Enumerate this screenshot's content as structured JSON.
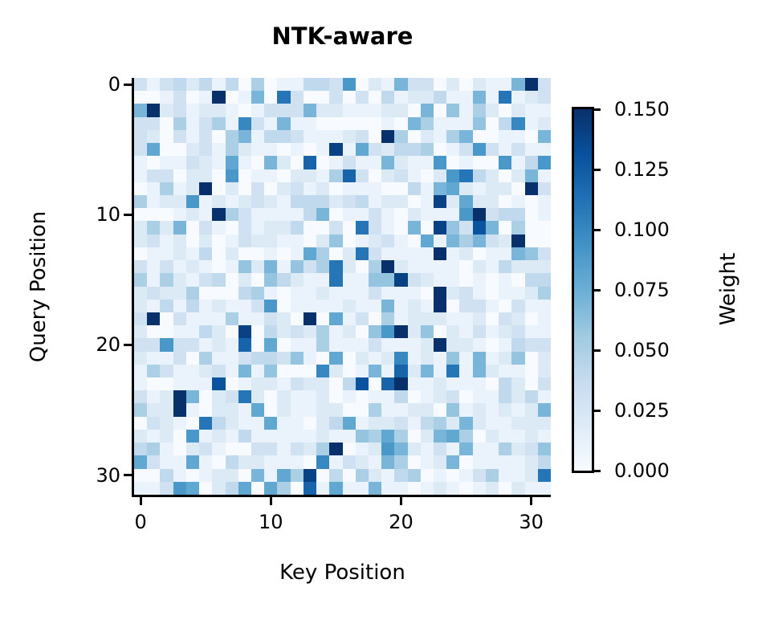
{
  "chart_data": {
    "type": "heatmap",
    "title": "NTK-aware",
    "xlabel": "Key Position",
    "ylabel": "Query Position",
    "x_ticks": [
      0,
      10,
      20,
      30
    ],
    "y_ticks": [
      0,
      10,
      20,
      30
    ],
    "x_range": [
      0,
      31
    ],
    "y_range": [
      0,
      31
    ],
    "colormap": "Blues",
    "colorbar": {
      "label": "Weight",
      "min": 0.0,
      "max": 0.15,
      "ticks": [
        "0.000",
        "0.025",
        "0.050",
        "0.075",
        "0.100",
        "0.125",
        "0.150"
      ]
    },
    "grid": false,
    "legend": null,
    "values": [
      [
        0.03,
        0.01,
        0.03,
        0.04,
        0.02,
        0.04,
        0.01,
        0.04,
        0.0,
        0.05,
        0.0,
        0.01,
        0.01,
        0.04,
        0.04,
        0.03,
        0.09,
        0.0,
        0.02,
        0.01,
        0.07,
        0.03,
        0.03,
        0.0,
        0.02,
        0.0,
        0.02,
        0.01,
        0.01,
        0.07,
        0.15,
        0.03
      ],
      [
        0.0,
        0.0,
        0.01,
        0.03,
        0.0,
        0.01,
        0.15,
        0.0,
        0.01,
        0.07,
        0.0,
        0.11,
        0.03,
        0.0,
        0.0,
        0.03,
        0.0,
        0.03,
        0.0,
        0.04,
        0.01,
        0.02,
        0.02,
        0.04,
        0.01,
        0.01,
        0.07,
        0.01,
        0.11,
        0.01,
        0.02,
        0.03
      ],
      [
        0.07,
        0.15,
        0.02,
        0.03,
        0.01,
        0.02,
        0.02,
        0.01,
        0.0,
        0.01,
        0.03,
        0.03,
        0.03,
        0.07,
        0.02,
        0.02,
        0.01,
        0.01,
        0.01,
        0.02,
        0.02,
        0.0,
        0.07,
        0.0,
        0.06,
        0.01,
        0.05,
        0.02,
        0.0,
        0.02,
        0.01,
        0.01
      ],
      [
        0.03,
        0.03,
        0.0,
        0.05,
        0.01,
        0.03,
        0.05,
        0.01,
        0.1,
        0.03,
        0.01,
        0.07,
        0.01,
        0.01,
        0.0,
        0.0,
        0.0,
        0.0,
        0.0,
        0.01,
        0.0,
        0.07,
        0.05,
        0.01,
        0.01,
        0.01,
        0.06,
        0.0,
        0.04,
        0.1,
        0.01,
        0.02
      ],
      [
        0.03,
        0.02,
        0.0,
        0.03,
        0.01,
        0.03,
        0.0,
        0.05,
        0.07,
        0.01,
        0.04,
        0.04,
        0.03,
        0.01,
        0.01,
        0.01,
        0.02,
        0.03,
        0.0,
        0.15,
        0.05,
        0.0,
        0.02,
        0.01,
        0.05,
        0.07,
        0.0,
        0.0,
        0.01,
        0.01,
        0.0,
        0.07
      ],
      [
        0.03,
        0.08,
        0.0,
        0.0,
        0.02,
        0.03,
        0.01,
        0.05,
        0.02,
        0.01,
        0.01,
        0.0,
        0.01,
        0.0,
        0.01,
        0.14,
        0.01,
        0.08,
        0.03,
        0.02,
        0.04,
        0.04,
        0.05,
        0.0,
        0.01,
        0.03,
        0.09,
        0.03,
        0.01,
        0.03,
        0.01,
        0.01
      ],
      [
        0.01,
        0.0,
        0.01,
        0.01,
        0.03,
        0.02,
        0.01,
        0.08,
        0.01,
        0.0,
        0.07,
        0.02,
        0.0,
        0.12,
        0.0,
        0.01,
        0.03,
        0.01,
        0.01,
        0.07,
        0.02,
        0.01,
        0.01,
        0.09,
        0.0,
        0.01,
        0.0,
        0.0,
        0.09,
        0.01,
        0.04,
        0.09
      ],
      [
        0.01,
        0.03,
        0.03,
        0.0,
        0.02,
        0.02,
        0.0,
        0.09,
        0.0,
        0.01,
        0.01,
        0.0,
        0.02,
        0.02,
        0.01,
        0.05,
        0.12,
        0.03,
        0.0,
        0.02,
        0.03,
        0.01,
        0.0,
        0.02,
        0.09,
        0.11,
        0.04,
        0.02,
        0.0,
        0.02,
        0.07,
        0.01
      ],
      [
        0.0,
        0.01,
        0.05,
        0.01,
        0.02,
        0.15,
        0.0,
        0.02,
        0.0,
        0.03,
        0.0,
        0.02,
        0.03,
        0.01,
        0.02,
        0.0,
        0.01,
        0.01,
        0.01,
        0.0,
        0.0,
        0.04,
        0.01,
        0.07,
        0.08,
        0.02,
        0.01,
        0.02,
        0.02,
        0.0,
        0.15,
        0.03
      ],
      [
        0.05,
        0.01,
        0.02,
        0.02,
        0.09,
        0.01,
        0.02,
        0.01,
        0.02,
        0.03,
        0.02,
        0.01,
        0.04,
        0.04,
        0.04,
        0.02,
        0.03,
        0.04,
        0.01,
        0.02,
        0.02,
        0.0,
        0.01,
        0.14,
        0.02,
        0.08,
        0.02,
        0.02,
        0.0,
        0.01,
        0.0,
        0.01
      ],
      [
        0.0,
        0.0,
        0.0,
        0.01,
        0.02,
        0.01,
        0.15,
        0.05,
        0.03,
        0.01,
        0.01,
        0.01,
        0.01,
        0.04,
        0.07,
        0.0,
        0.01,
        0.01,
        0.03,
        0.01,
        0.0,
        0.02,
        0.01,
        0.01,
        0.01,
        0.09,
        0.15,
        0.03,
        0.04,
        0.04,
        0.0,
        0.01
      ],
      [
        0.02,
        0.05,
        0.02,
        0.07,
        0.0,
        0.03,
        0.01,
        0.0,
        0.03,
        0.01,
        0.02,
        0.02,
        0.04,
        0.0,
        0.0,
        0.03,
        0.0,
        0.11,
        0.03,
        0.01,
        0.0,
        0.07,
        0.0,
        0.14,
        0.06,
        0.03,
        0.13,
        0.07,
        0.0,
        0.05,
        0.0,
        0.0
      ],
      [
        0.02,
        0.03,
        0.01,
        0.02,
        0.0,
        0.02,
        0.0,
        0.01,
        0.03,
        0.02,
        0.02,
        0.01,
        0.01,
        0.0,
        0.02,
        0.06,
        0.0,
        0.01,
        0.02,
        0.03,
        0.01,
        0.0,
        0.08,
        0.01,
        0.07,
        0.05,
        0.07,
        0.03,
        0.02,
        0.15,
        0.0,
        0.0
      ],
      [
        0.0,
        0.01,
        0.01,
        0.02,
        0.01,
        0.04,
        0.0,
        0.02,
        0.0,
        0.0,
        0.01,
        0.0,
        0.01,
        0.08,
        0.05,
        0.0,
        0.02,
        0.11,
        0.03,
        0.01,
        0.01,
        0.01,
        0.01,
        0.15,
        0.01,
        0.02,
        0.0,
        0.01,
        0.01,
        0.07,
        0.06,
        0.03
      ],
      [
        0.03,
        0.01,
        0.03,
        0.01,
        0.02,
        0.01,
        0.0,
        0.01,
        0.06,
        0.02,
        0.07,
        0.01,
        0.06,
        0.03,
        0.05,
        0.11,
        0.02,
        0.0,
        0.05,
        0.15,
        0.02,
        0.01,
        0.01,
        0.01,
        0.01,
        0.0,
        0.02,
        0.01,
        0.04,
        0.02,
        0.02,
        0.02
      ],
      [
        0.05,
        0.01,
        0.05,
        0.02,
        0.01,
        0.03,
        0.04,
        0.0,
        0.02,
        0.0,
        0.06,
        0.04,
        0.02,
        0.01,
        0.01,
        0.11,
        0.01,
        0.01,
        0.06,
        0.06,
        0.14,
        0.03,
        0.02,
        0.01,
        0.01,
        0.0,
        0.01,
        0.0,
        0.01,
        0.0,
        0.04,
        0.04
      ],
      [
        0.02,
        0.03,
        0.02,
        0.02,
        0.05,
        0.0,
        0.0,
        0.0,
        0.04,
        0.05,
        0.01,
        0.0,
        0.01,
        0.01,
        0.02,
        0.01,
        0.01,
        0.01,
        0.03,
        0.01,
        0.01,
        0.01,
        0.0,
        0.15,
        0.02,
        0.03,
        0.01,
        0.0,
        0.01,
        0.01,
        0.02,
        0.05
      ],
      [
        0.02,
        0.01,
        0.04,
        0.01,
        0.04,
        0.01,
        0.02,
        0.01,
        0.01,
        0.03,
        0.09,
        0.0,
        0.01,
        0.01,
        0.01,
        0.01,
        0.02,
        0.01,
        0.01,
        0.07,
        0.01,
        0.02,
        0.01,
        0.15,
        0.0,
        0.03,
        0.03,
        0.01,
        0.0,
        0.03,
        0.01,
        0.01
      ],
      [
        0.03,
        0.15,
        0.0,
        0.03,
        0.01,
        0.01,
        0.01,
        0.05,
        0.01,
        0.01,
        0.03,
        0.02,
        0.0,
        0.15,
        0.0,
        0.08,
        0.01,
        0.03,
        0.0,
        0.05,
        0.01,
        0.02,
        0.02,
        0.02,
        0.01,
        0.01,
        0.02,
        0.0,
        0.03,
        0.02,
        0.0,
        0.01
      ],
      [
        0.02,
        0.0,
        0.0,
        0.01,
        0.01,
        0.04,
        0.02,
        0.0,
        0.14,
        0.0,
        0.04,
        0.02,
        0.03,
        0.02,
        0.05,
        0.01,
        0.02,
        0.0,
        0.06,
        0.09,
        0.15,
        0.02,
        0.06,
        0.0,
        0.02,
        0.01,
        0.03,
        0.01,
        0.02,
        0.03,
        0.01,
        0.01
      ],
      [
        0.03,
        0.03,
        0.09,
        0.03,
        0.03,
        0.01,
        0.02,
        0.01,
        0.12,
        0.0,
        0.08,
        0.0,
        0.01,
        0.01,
        0.05,
        0.01,
        0.01,
        0.01,
        0.03,
        0.01,
        0.01,
        0.01,
        0.02,
        0.15,
        0.02,
        0.02,
        0.01,
        0.0,
        0.01,
        0.04,
        0.03,
        0.03
      ],
      [
        0.02,
        0.01,
        0.01,
        0.03,
        0.0,
        0.05,
        0.01,
        0.01,
        0.03,
        0.04,
        0.04,
        0.03,
        0.06,
        0.01,
        0.0,
        0.08,
        0.0,
        0.02,
        0.01,
        0.02,
        0.1,
        0.01,
        0.02,
        0.01,
        0.06,
        0.01,
        0.07,
        0.01,
        0.02,
        0.06,
        0.0,
        0.02
      ],
      [
        0.01,
        0.05,
        0.03,
        0.01,
        0.01,
        0.02,
        0.03,
        0.01,
        0.07,
        0.01,
        0.06,
        0.0,
        0.0,
        0.0,
        0.1,
        0.02,
        0.0,
        0.01,
        0.07,
        0.01,
        0.12,
        0.02,
        0.07,
        0.01,
        0.11,
        0.01,
        0.07,
        0.02,
        0.01,
        0.01,
        0.0,
        0.02
      ],
      [
        0.01,
        0.0,
        0.0,
        0.01,
        0.01,
        0.01,
        0.13,
        0.0,
        0.01,
        0.02,
        0.02,
        0.01,
        0.03,
        0.02,
        0.02,
        0.0,
        0.04,
        0.13,
        0.0,
        0.12,
        0.15,
        0.01,
        0.01,
        0.02,
        0.01,
        0.01,
        0.01,
        0.0,
        0.04,
        0.02,
        0.0,
        0.03
      ],
      [
        0.03,
        0.01,
        0.02,
        0.15,
        0.07,
        0.0,
        0.02,
        0.03,
        0.11,
        0.02,
        0.0,
        0.02,
        0.01,
        0.01,
        0.02,
        0.0,
        0.01,
        0.0,
        0.01,
        0.01,
        0.04,
        0.0,
        0.01,
        0.02,
        0.03,
        0.0,
        0.01,
        0.01,
        0.04,
        0.02,
        0.04,
        0.01
      ],
      [
        0.05,
        0.02,
        0.02,
        0.15,
        0.01,
        0.0,
        0.02,
        0.02,
        0.01,
        0.08,
        0.0,
        0.02,
        0.01,
        0.01,
        0.02,
        0.02,
        0.0,
        0.0,
        0.05,
        0.01,
        0.01,
        0.02,
        0.02,
        0.0,
        0.06,
        0.01,
        0.02,
        0.01,
        0.02,
        0.01,
        0.02,
        0.07
      ],
      [
        0.0,
        0.03,
        0.02,
        0.01,
        0.0,
        0.11,
        0.04,
        0.02,
        0.01,
        0.01,
        0.08,
        0.01,
        0.01,
        0.0,
        0.02,
        0.04,
        0.08,
        0.01,
        0.02,
        0.02,
        0.03,
        0.01,
        0.04,
        0.05,
        0.02,
        0.07,
        0.02,
        0.01,
        0.01,
        0.02,
        0.02,
        0.02
      ],
      [
        0.02,
        0.01,
        0.02,
        0.0,
        0.09,
        0.01,
        0.02,
        0.01,
        0.04,
        0.01,
        0.01,
        0.01,
        0.01,
        0.01,
        0.02,
        0.01,
        0.01,
        0.06,
        0.05,
        0.08,
        0.05,
        0.0,
        0.02,
        0.07,
        0.08,
        0.05,
        0.0,
        0.02,
        0.01,
        0.01,
        0.02,
        0.01
      ],
      [
        0.04,
        0.05,
        0.01,
        0.0,
        0.02,
        0.03,
        0.01,
        0.0,
        0.0,
        0.03,
        0.03,
        0.01,
        0.03,
        0.02,
        0.05,
        0.15,
        0.0,
        0.01,
        0.02,
        0.09,
        0.07,
        0.02,
        0.01,
        0.03,
        0.01,
        0.07,
        0.01,
        0.01,
        0.05,
        0.02,
        0.03,
        0.06
      ],
      [
        0.08,
        0.03,
        0.01,
        0.01,
        0.08,
        0.01,
        0.0,
        0.04,
        0.02,
        0.02,
        0.01,
        0.01,
        0.01,
        0.0,
        0.1,
        0.01,
        0.03,
        0.02,
        0.01,
        0.07,
        0.05,
        0.0,
        0.01,
        0.02,
        0.07,
        0.0,
        0.01,
        0.01,
        0.01,
        0.01,
        0.02,
        0.04
      ],
      [
        0.0,
        0.0,
        0.04,
        0.01,
        0.0,
        0.01,
        0.02,
        0.02,
        0.0,
        0.07,
        0.01,
        0.08,
        0.05,
        0.14,
        0.0,
        0.04,
        0.0,
        0.05,
        0.02,
        0.01,
        0.04,
        0.05,
        0.0,
        0.01,
        0.0,
        0.01,
        0.03,
        0.05,
        0.01,
        0.01,
        0.02,
        0.11
      ],
      [
        0.01,
        0.01,
        0.03,
        0.09,
        0.08,
        0.0,
        0.02,
        0.04,
        0.08,
        0.0,
        0.08,
        0.05,
        0.0,
        0.12,
        0.01,
        0.08,
        0.01,
        0.01,
        0.07,
        0.01,
        0.01,
        0.0,
        0.01,
        0.02,
        0.01,
        0.0,
        0.01,
        0.02,
        0.0,
        0.02,
        0.01,
        0.01
      ]
    ]
  }
}
